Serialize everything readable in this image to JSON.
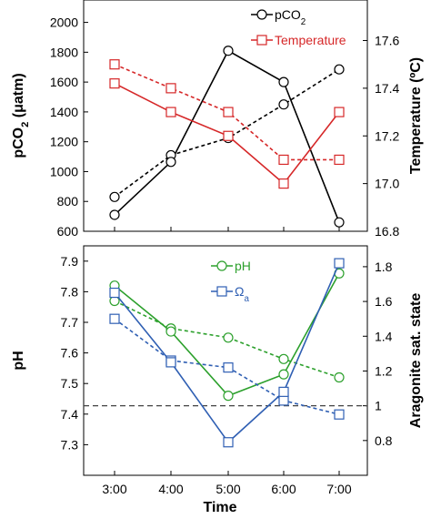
{
  "colors": {
    "pco2": "#000000",
    "temperature": "#d62728",
    "ph": "#2ca02c",
    "omega": "#2f5fb3",
    "reference": "#444444"
  },
  "chart_data": [
    {
      "type": "line",
      "panel": "top",
      "grid": false,
      "legend_position": "top-right",
      "x_categories": [
        "3:00",
        "4:00",
        "5:00",
        "6:00",
        "7:00"
      ],
      "left_axis": {
        "label_parts": [
          "pCO",
          "2",
          " (μatm)"
        ],
        "ylim": [
          600,
          2150
        ],
        "ticks": [
          600,
          800,
          1000,
          1200,
          1400,
          1600,
          1800,
          2000
        ]
      },
      "right_axis": {
        "label": "Temperature (ºC)",
        "ylim": [
          16.8,
          17.77
        ],
        "ticks": [
          "16.8",
          "17.0",
          "17.2",
          "17.4",
          "17.6"
        ]
      },
      "series": [
        {
          "key": "pco2",
          "legend_parts": [
            "pCO",
            "2"
          ],
          "axis": "left",
          "marker": "circle",
          "solid": [
            710,
            1065,
            1810,
            1600,
            660
          ],
          "dashed": [
            830,
            1110,
            1225,
            1450,
            1685
          ]
        },
        {
          "key": "temperature",
          "legend_parts": [
            "Temperature"
          ],
          "axis": "right",
          "marker": "square",
          "solid": [
            17.42,
            17.3,
            17.2,
            17.0,
            17.3
          ],
          "dashed": [
            17.5,
            17.4,
            17.3,
            17.1,
            17.1
          ]
        }
      ]
    },
    {
      "type": "line",
      "panel": "bottom",
      "grid": false,
      "legend_position": "top-right",
      "xlabel": "Time",
      "x_categories": [
        "3:00",
        "4:00",
        "5:00",
        "6:00",
        "7:00"
      ],
      "left_axis": {
        "label": "pH",
        "ylim": [
          7.2,
          7.95
        ],
        "ticks": [
          "7.3",
          "7.4",
          "7.5",
          "7.6",
          "7.7",
          "7.8",
          "7.9"
        ]
      },
      "right_axis": {
        "label": "Aragonite sat. state",
        "ylim": [
          0.6,
          1.92
        ],
        "ticks": [
          "0.8",
          "1",
          "1.2",
          "1.4",
          "1.6",
          "1.8"
        ]
      },
      "reference_line": {
        "axis": "right",
        "value": 1
      },
      "series": [
        {
          "key": "ph",
          "legend_parts": [
            "pH"
          ],
          "axis": "left",
          "marker": "circle",
          "solid": [
            7.82,
            7.67,
            7.46,
            7.53,
            7.86
          ],
          "dashed": [
            7.77,
            7.68,
            7.65,
            7.58,
            7.52
          ]
        },
        {
          "key": "omega",
          "legend_parts": [
            "Ω",
            "a"
          ],
          "axis": "right",
          "marker": "square",
          "solid": [
            1.65,
            1.25,
            0.79,
            1.08,
            1.82
          ],
          "dashed": [
            1.5,
            1.26,
            1.22,
            1.03,
            0.95
          ]
        }
      ]
    }
  ]
}
